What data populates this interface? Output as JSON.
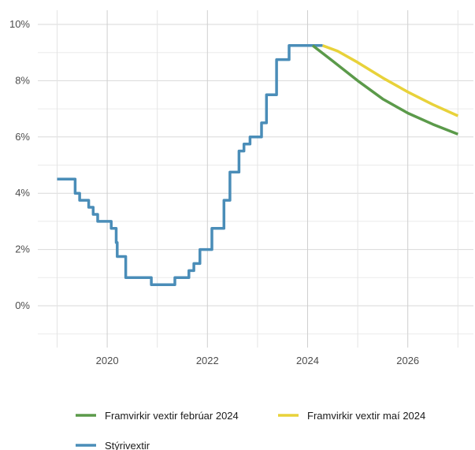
{
  "chart_data": {
    "type": "line",
    "title": "",
    "xlabel": "",
    "ylabel": "",
    "xlim": [
      2019.0,
      2027.0
    ],
    "ylim": [
      -1.0,
      10.0
    ],
    "grid": true,
    "legend_position": "bottom",
    "y_ticks": [
      0,
      2,
      4,
      6,
      8,
      10
    ],
    "y_tick_labels": [
      "0%",
      "2%",
      "4%",
      "6%",
      "8%",
      "10%"
    ],
    "x_ticks": [
      2020,
      2022,
      2024,
      2026
    ],
    "x_tick_labels": [
      "2020",
      "2022",
      "2024",
      "2026"
    ],
    "series": [
      {
        "name": "Stýrivextir",
        "color": "#4a8db8",
        "step": true,
        "points": [
          [
            2019.0,
            4.5
          ],
          [
            2019.36,
            4.0
          ],
          [
            2019.45,
            3.75
          ],
          [
            2019.63,
            3.5
          ],
          [
            2019.72,
            3.25
          ],
          [
            2019.81,
            3.0
          ],
          [
            2020.08,
            2.75
          ],
          [
            2020.18,
            2.25
          ],
          [
            2020.2,
            1.75
          ],
          [
            2020.37,
            1.0
          ],
          [
            2020.88,
            0.75
          ],
          [
            2021.35,
            1.0
          ],
          [
            2021.63,
            1.25
          ],
          [
            2021.73,
            1.5
          ],
          [
            2021.85,
            2.0
          ],
          [
            2022.09,
            2.75
          ],
          [
            2022.33,
            3.75
          ],
          [
            2022.45,
            4.75
          ],
          [
            2022.63,
            5.5
          ],
          [
            2022.73,
            5.75
          ],
          [
            2022.85,
            6.0
          ],
          [
            2023.08,
            6.5
          ],
          [
            2023.18,
            7.5
          ],
          [
            2023.38,
            8.75
          ],
          [
            2023.63,
            9.25
          ],
          [
            2024.3,
            9.25
          ]
        ]
      },
      {
        "name": "Framvirkir vextir febrúar 2024",
        "color": "#5b9a4a",
        "step": false,
        "points": [
          [
            2024.1,
            9.25
          ],
          [
            2024.5,
            8.7
          ],
          [
            2025.0,
            8.0
          ],
          [
            2025.5,
            7.35
          ],
          [
            2026.0,
            6.85
          ],
          [
            2026.5,
            6.45
          ],
          [
            2027.0,
            6.1
          ]
        ]
      },
      {
        "name": "Framvirkir vextir maí 2024",
        "color": "#e8d23a",
        "step": false,
        "points": [
          [
            2024.3,
            9.25
          ],
          [
            2024.6,
            9.05
          ],
          [
            2025.0,
            8.65
          ],
          [
            2025.5,
            8.1
          ],
          [
            2026.0,
            7.6
          ],
          [
            2026.5,
            7.15
          ],
          [
            2027.0,
            6.75
          ]
        ]
      }
    ],
    "legend_rows": [
      [
        "Framvirkir vextir febrúar 2024",
        "Framvirkir vextir maí 2024"
      ],
      [
        "Stýrivextir"
      ]
    ]
  }
}
